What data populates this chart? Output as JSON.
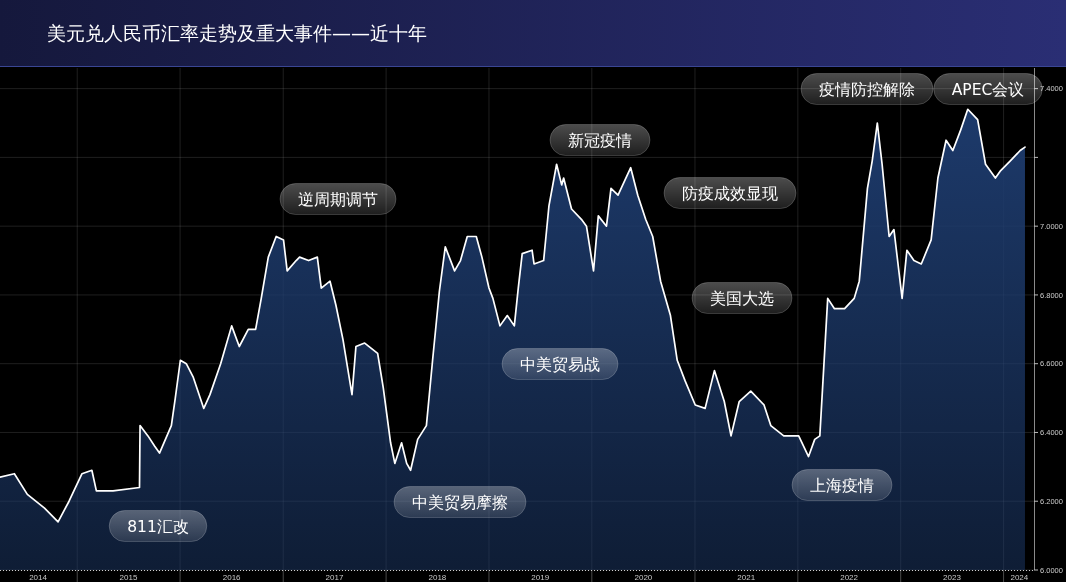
{
  "chart_data": {
    "type": "area",
    "title": "美元兑人民币汇率走势及重大事件——近十年",
    "color": "#1d3a6b",
    "x": [
      "2014-04-02",
      "2014-05-23",
      "2014-07-08",
      "2014-09-07",
      "2014-10-25",
      "2014-12-03",
      "2015-01-18",
      "2015-02-22",
      "2015-03-10",
      "2015-05-08",
      "2015-08-10",
      "2015-08-12",
      "2015-09-09",
      "2015-10-03",
      "2015-10-20",
      "2015-12-01",
      "2015-12-15",
      "2016-01-02",
      "2016-01-23",
      "2016-02-17",
      "2016-03-25",
      "2016-04-16",
      "2016-05-24",
      "2016-07-02",
      "2016-07-29",
      "2016-08-30",
      "2016-09-25",
      "2016-10-15",
      "2016-11-09",
      "2016-12-07",
      "2017-01-02",
      "2017-01-15",
      "2017-02-16",
      "2017-02-28",
      "2017-04-01",
      "2017-05-02",
      "2017-05-16",
      "2017-06-16",
      "2017-07-07",
      "2017-08-01",
      "2017-09-02",
      "2017-09-16",
      "2017-10-17",
      "2017-12-02",
      "2017-12-22",
      "2018-01-17",
      "2018-02-01",
      "2018-02-25",
      "2018-03-15",
      "2018-03-29",
      "2018-04-23",
      "2018-05-24",
      "2018-06-15",
      "2018-07-09",
      "2018-07-30",
      "2018-09-01",
      "2018-09-22",
      "2018-10-16",
      "2018-11-17",
      "2018-12-07",
      "2019-01-01",
      "2019-01-15",
      "2019-02-09",
      "2019-03-07",
      "2019-04-01",
      "2019-04-15",
      "2019-04-29",
      "2019-06-03",
      "2019-06-10",
      "2019-07-14",
      "2019-08-02",
      "2019-08-29",
      "2019-09-16",
      "2019-09-23",
      "2019-10-21",
      "2019-11-25",
      "2019-12-13",
      "2020-01-07",
      "2020-01-24",
      "2020-02-22",
      "2020-03-09",
      "2020-04-03",
      "2020-05-18",
      "2020-06-12",
      "2020-07-10",
      "2020-08-04",
      "2020-09-01",
      "2020-10-06",
      "2020-10-30",
      "2020-11-27",
      "2021-01-02",
      "2021-02-06",
      "2021-03-11",
      "2021-04-15",
      "2021-05-09",
      "2021-06-07",
      "2021-07-18",
      "2021-09-03",
      "2021-09-27",
      "2021-11-12",
      "2022-01-04",
      "2022-02-08",
      "2022-03-02",
      "2022-03-20",
      "2022-04-17",
      "2022-05-11",
      "2022-06-16",
      "2022-07-20",
      "2022-08-07",
      "2022-09-05",
      "2022-09-22",
      "2022-10-10",
      "2022-10-27",
      "2022-11-21",
      "2022-12-08",
      "2023-01-06",
      "2023-01-23",
      "2023-02-17",
      "2023-03-15",
      "2023-04-19",
      "2023-05-13",
      "2023-06-11",
      "2023-07-05",
      "2023-08-02",
      "2023-08-27",
      "2023-10-01",
      "2023-10-29",
      "2023-12-03",
      "2023-12-20",
      "2024-01-25",
      "2024-02-29",
      "2024-03-17"
    ],
    "values": [
      6.27,
      6.28,
      6.22,
      6.18,
      6.14,
      6.2,
      6.28,
      6.29,
      6.23,
      6.23,
      6.24,
      6.42,
      6.39,
      6.36,
      6.34,
      6.42,
      6.5,
      6.61,
      6.6,
      6.56,
      6.47,
      6.51,
      6.6,
      6.71,
      6.65,
      6.7,
      6.7,
      6.79,
      6.91,
      6.97,
      6.96,
      6.87,
      6.9,
      6.91,
      6.9,
      6.91,
      6.82,
      6.84,
      6.77,
      6.67,
      6.51,
      6.65,
      6.66,
      6.63,
      6.53,
      6.37,
      6.31,
      6.37,
      6.31,
      6.29,
      6.38,
      6.42,
      6.61,
      6.81,
      6.94,
      6.87,
      6.9,
      6.97,
      6.97,
      6.91,
      6.82,
      6.79,
      6.71,
      6.74,
      6.71,
      6.82,
      6.92,
      6.93,
      6.89,
      6.9,
      7.06,
      7.18,
      7.12,
      7.14,
      7.05,
      7.02,
      7.0,
      6.87,
      7.03,
      7.0,
      7.11,
      7.09,
      7.17,
      7.09,
      7.02,
      6.97,
      6.84,
      6.74,
      6.61,
      6.55,
      6.48,
      6.47,
      6.58,
      6.49,
      6.39,
      6.49,
      6.52,
      6.48,
      6.42,
      6.39,
      6.39,
      6.33,
      6.38,
      6.39,
      6.79,
      6.76,
      6.76,
      6.79,
      6.84,
      7.11,
      7.19,
      7.3,
      7.18,
      6.97,
      6.99,
      6.79,
      6.93,
      6.9,
      6.89,
      6.96,
      7.14,
      7.25,
      7.22,
      7.28,
      7.34,
      7.31,
      7.18,
      7.14,
      7.16,
      7.19,
      7.22,
      7.23
    ],
    "xlim": [
      "2014-04-02",
      "2024-04-18"
    ],
    "ylim": [
      6,
      7.46
    ],
    "xticks": [
      {
        "value": "2014-08-15",
        "label": "2014"
      },
      {
        "value": "2015-01-01",
        "label": null
      },
      {
        "value": "2015-07-02",
        "label": "2015"
      },
      {
        "value": "2016-01-01",
        "label": null
      },
      {
        "value": "2016-07-02",
        "label": "2016"
      },
      {
        "value": "2017-01-01",
        "label": null
      },
      {
        "value": "2017-07-02",
        "label": "2017"
      },
      {
        "value": "2018-01-01",
        "label": null
      },
      {
        "value": "2018-07-02",
        "label": "2018"
      },
      {
        "value": "2019-01-01",
        "label": null
      },
      {
        "value": "2019-07-02",
        "label": "2019"
      },
      {
        "value": "2020-01-01",
        "label": null
      },
      {
        "value": "2020-07-02",
        "label": "2020"
      },
      {
        "value": "2021-01-01",
        "label": null
      },
      {
        "value": "2021-07-02",
        "label": "2021"
      },
      {
        "value": "2022-01-01",
        "label": null
      },
      {
        "value": "2022-07-02",
        "label": "2022"
      },
      {
        "value": "2023-01-01",
        "label": null
      },
      {
        "value": "2023-07-02",
        "label": "2023"
      },
      {
        "value": "2024-01-01",
        "label": null
      },
      {
        "value": "2024-02-26",
        "label": "2024"
      }
    ],
    "yticks": [
      {
        "value": 6,
        "label": "6.0000"
      },
      {
        "value": 6.2,
        "label": "6.2000"
      },
      {
        "value": 6.4,
        "label": "6.4000"
      },
      {
        "value": 6.6,
        "label": "6.6000"
      },
      {
        "value": 6.8,
        "label": "6.8000"
      },
      {
        "value": 7,
        "label": "7.0000"
      },
      {
        "value": 7.2,
        "label": null
      },
      {
        "value": 7.4,
        "label": "7.4000"
      }
    ],
    "grid": true,
    "annotations": [
      "811汇改",
      "逆周期调节",
      "中美贸易摩擦",
      "新冠疫情",
      "中美贸易战",
      "防疫成效显现",
      "美国大选",
      "上海疫情",
      "疫情防控解除",
      "APEC会议"
    ]
  }
}
